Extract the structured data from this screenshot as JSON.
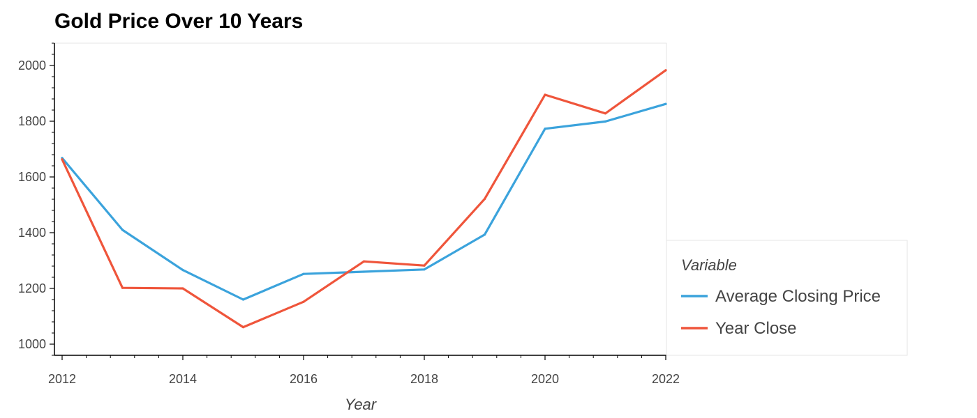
{
  "chart_data": {
    "type": "line",
    "title": "Gold Price Over 10 Years",
    "xlabel": "Year",
    "ylabel": "",
    "x": [
      2012,
      2013,
      2014,
      2015,
      2016,
      2017,
      2018,
      2019,
      2020,
      2021,
      2022
    ],
    "xlim": [
      2012,
      2022
    ],
    "ylim": [
      960,
      2080
    ],
    "x_ticks": [
      "2012",
      "2014",
      "2016",
      "2018",
      "2020",
      "2022"
    ],
    "y_ticks": [
      "1000",
      "1200",
      "1400",
      "1600",
      "1800",
      "2000"
    ],
    "grid": false,
    "legend": {
      "title": "Variable",
      "position": "right"
    },
    "series": [
      {
        "name": "Average Closing Price",
        "color": "#3ba3dc",
        "values": [
          1668,
          1410,
          1266,
          1160,
          1252,
          1260,
          1268,
          1393,
          1773,
          1799,
          1862
        ]
      },
      {
        "name": "Year Close",
        "color": "#ef553b",
        "values": [
          1663,
          1202,
          1200,
          1061,
          1152,
          1297,
          1282,
          1521,
          1895,
          1828,
          1983
        ]
      }
    ]
  }
}
